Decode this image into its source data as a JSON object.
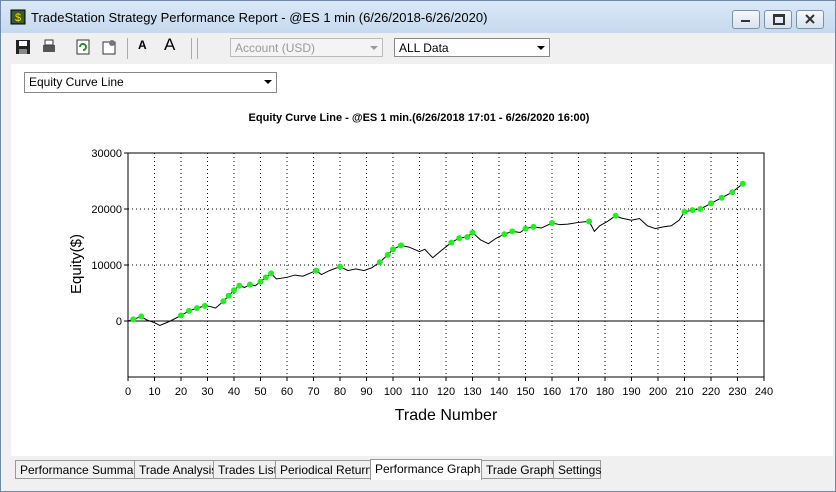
{
  "window": {
    "title": "TradeStation Strategy Performance Report - @ES 1 min (6/26/2018-6/26/2020)"
  },
  "toolbar": {
    "font_buttons": [
      "A",
      "A"
    ],
    "account": "Account (USD)",
    "range": "ALL Data"
  },
  "graph_selector": "Equity Curve Line",
  "tabs": [
    "Performance Summary",
    "Trade Analysis",
    "Trades List",
    "Periodical Returns",
    "Performance Graphs",
    "Trade Graphs",
    "Settings"
  ],
  "active_tab": "Performance Graphs",
  "chart_data": {
    "type": "line",
    "title": "Equity Curve Line - @ES 1 min.(6/26/2018 17:01 - 6/26/2020 16:00)",
    "x_label": "Trade Number",
    "y_label": "Equity($)",
    "xlim": [
      0,
      240
    ],
    "xticks": [
      0,
      10,
      20,
      30,
      40,
      50,
      60,
      70,
      80,
      90,
      100,
      110,
      120,
      130,
      140,
      150,
      160,
      170,
      180,
      190,
      200,
      210,
      220,
      230,
      240
    ],
    "ylim": [
      -10000,
      30000
    ],
    "yticks": [
      0,
      10000,
      20000,
      30000
    ],
    "grid": true,
    "series": [
      {
        "style": "line",
        "color": "#000000",
        "x": [
          0,
          2,
          5,
          7,
          10,
          12,
          14,
          16,
          20,
          23,
          26,
          29,
          31,
          33,
          36,
          38,
          40,
          42,
          44,
          46,
          48,
          50,
          52,
          54,
          56,
          60,
          63,
          66,
          69,
          71,
          73,
          76,
          80,
          83,
          86,
          89,
          92,
          95,
          98,
          100,
          103,
          106,
          110,
          112,
          115,
          118,
          122,
          125,
          128,
          130,
          133,
          136,
          139,
          142,
          145,
          148,
          150,
          153,
          156,
          160,
          163,
          166,
          170,
          174,
          176,
          178,
          181,
          184,
          186,
          190,
          193,
          196,
          199,
          202,
          205,
          208,
          210,
          213,
          216,
          220,
          224,
          228,
          232
        ],
        "values": [
          0,
          300,
          800,
          200,
          -300,
          -800,
          -400,
          0,
          1000,
          1800,
          2300,
          2700,
          2600,
          2300,
          3500,
          4500,
          5500,
          6300,
          6000,
          6500,
          6300,
          7000,
          7800,
          8500,
          7500,
          7800,
          8200,
          8000,
          8600,
          9000,
          8300,
          9000,
          9700,
          9000,
          9300,
          9000,
          9500,
          10500,
          11800,
          12800,
          13500,
          13200,
          12400,
          12800,
          11300,
          12500,
          14000,
          14800,
          15000,
          15800,
          14500,
          13800,
          14800,
          15500,
          16000,
          15800,
          16500,
          16800,
          16600,
          17500,
          17200,
          17300,
          17600,
          17800,
          16000,
          17000,
          17800,
          18800,
          18400,
          18000,
          18300,
          17000,
          16500,
          16800,
          17000,
          18000,
          19500,
          19800,
          20000,
          21000,
          22000,
          23000,
          24500
        ]
      },
      {
        "style": "markers",
        "color": "#22ee22",
        "x": [
          2,
          5,
          20,
          23,
          26,
          29,
          36,
          38,
          40,
          42,
          46,
          50,
          52,
          54,
          71,
          80,
          95,
          98,
          100,
          103,
          122,
          125,
          128,
          130,
          142,
          145,
          150,
          153,
          160,
          174,
          184,
          210,
          213,
          216,
          220,
          224,
          228,
          232
        ],
        "values": [
          300,
          800,
          1000,
          1800,
          2300,
          2700,
          3500,
          4500,
          5500,
          6300,
          6500,
          7000,
          7800,
          8500,
          9000,
          9700,
          10500,
          11800,
          12800,
          13500,
          14000,
          14800,
          15000,
          15800,
          15500,
          16000,
          16500,
          16800,
          17500,
          17800,
          18800,
          19500,
          19800,
          20000,
          21000,
          22000,
          23000,
          24500
        ]
      }
    ]
  }
}
